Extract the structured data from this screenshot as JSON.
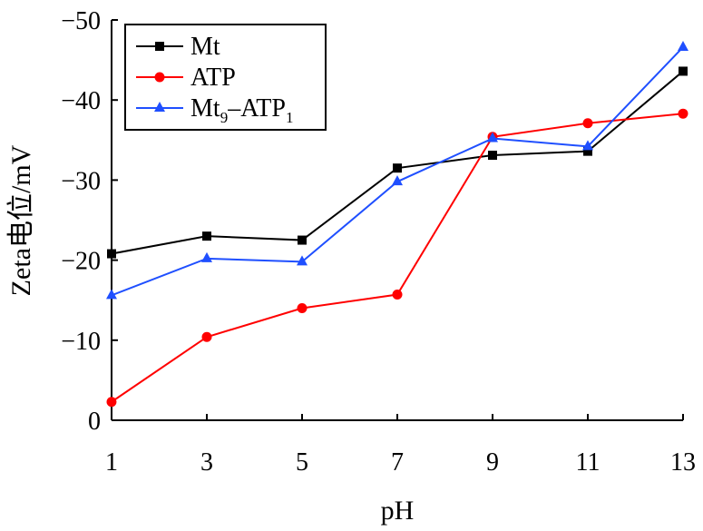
{
  "chart_data": {
    "type": "line",
    "x": [
      1,
      3,
      5,
      7,
      9,
      11,
      13
    ],
    "xlabel": "pH",
    "ylabel": "Zeta电位/mV",
    "xlim": [
      1,
      13
    ],
    "ylim": [
      0,
      -50
    ],
    "y_axis_inverted": true,
    "xticks": [
      "1",
      "3",
      "5",
      "7",
      "9",
      "11",
      "13"
    ],
    "yticks": [
      "0",
      "−10",
      "−20",
      "−30",
      "−40",
      "−50"
    ],
    "grid": false,
    "legend_position": "top-left",
    "series": [
      {
        "name": "Mt",
        "color": "#000000",
        "marker": "square",
        "values": [
          -20.8,
          -23.0,
          -22.5,
          -31.5,
          -33.1,
          -33.6,
          -43.6
        ]
      },
      {
        "name": "ATP",
        "color": "#ff0000",
        "marker": "circle",
        "values": [
          -2.3,
          -10.4,
          -14.0,
          -15.7,
          -35.4,
          -37.1,
          -38.3
        ]
      },
      {
        "name": "Mt9–ATP1",
        "name_main": "Mt",
        "name_sub1": "9",
        "name_mid": "–ATP",
        "name_sub2": "1",
        "color": "#1f4fff",
        "marker": "triangle",
        "values": [
          -15.6,
          -20.2,
          -19.8,
          -29.8,
          -35.2,
          -34.2,
          -46.6
        ]
      }
    ]
  }
}
